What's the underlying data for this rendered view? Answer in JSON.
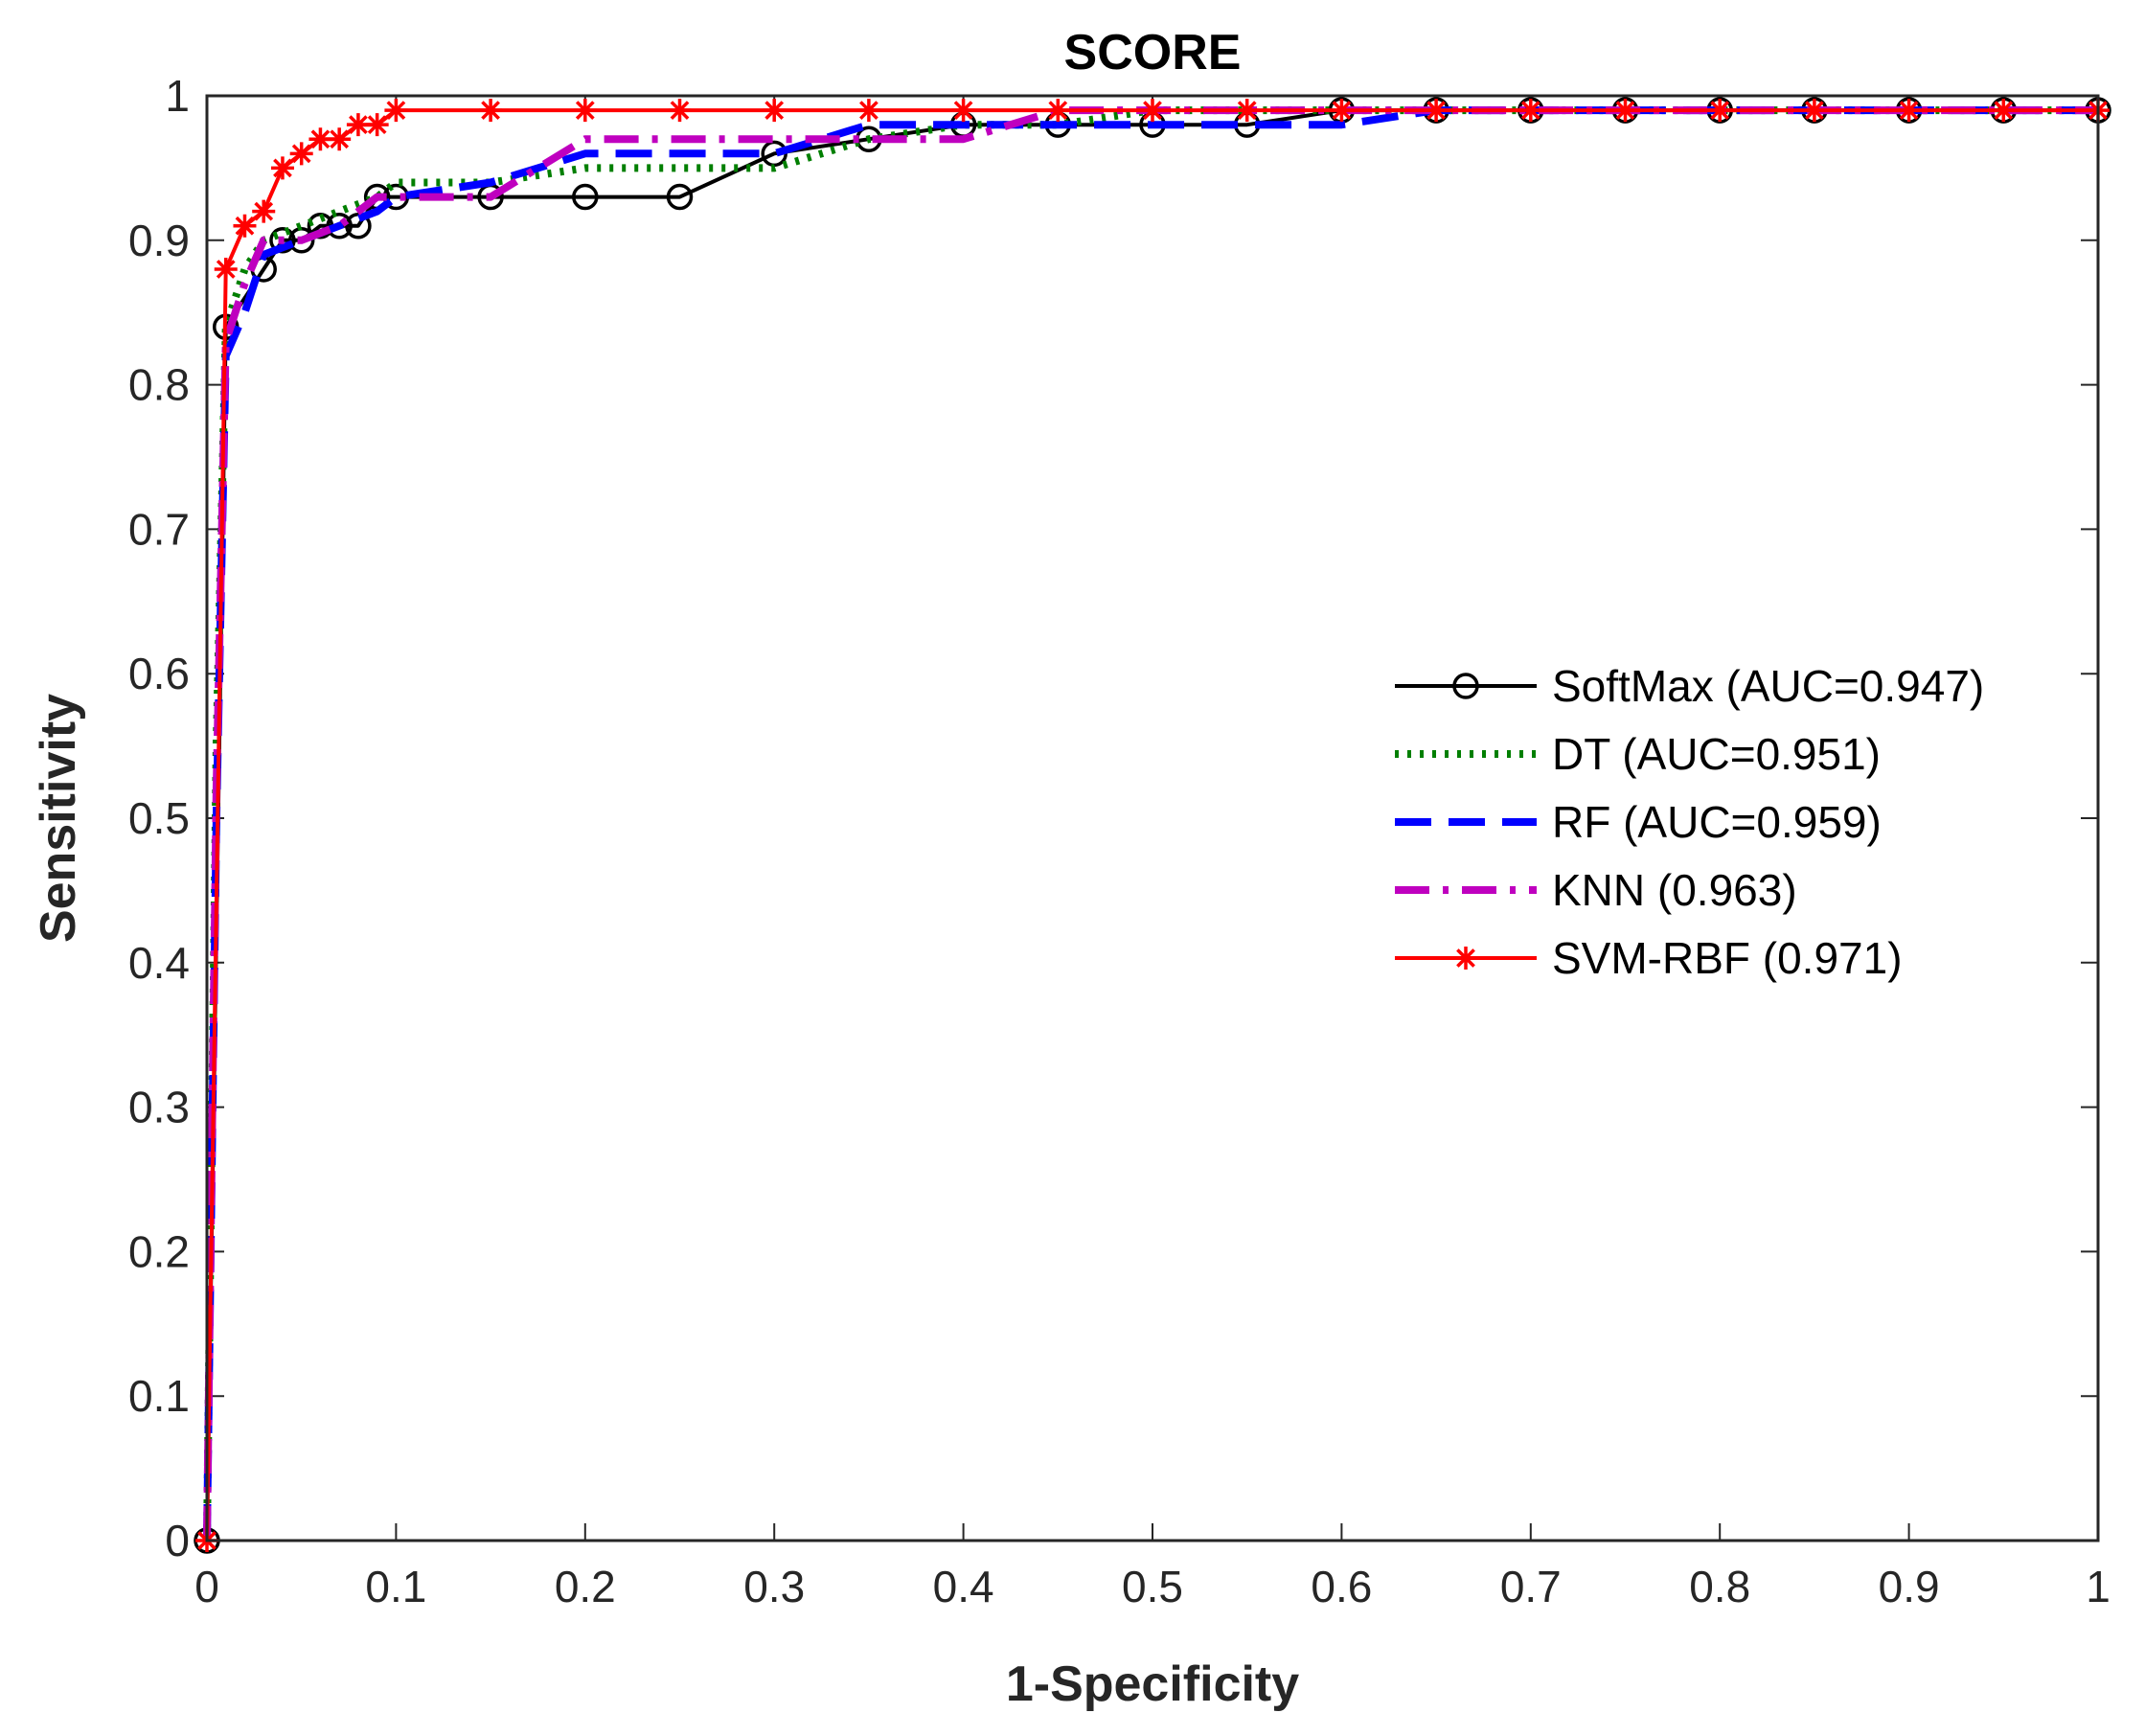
{
  "chart_data": {
    "type": "line",
    "title": "SCORE",
    "xlabel": "1-Specificity",
    "ylabel": "Sensitivity",
    "xlim": [
      0,
      1
    ],
    "ylim": [
      0,
      1
    ],
    "xticks": [
      "0",
      "0.1",
      "0.2",
      "0.3",
      "0.4",
      "0.5",
      "0.6",
      "0.7",
      "0.8",
      "0.9",
      "1"
    ],
    "yticks": [
      "0",
      "0.1",
      "0.2",
      "0.3",
      "0.4",
      "0.5",
      "0.6",
      "0.7",
      "0.8",
      "0.9",
      "1"
    ],
    "legend_position": "center-right",
    "series": [
      {
        "name": "SoftMax (AUC=0.947)",
        "color": "#000000",
        "style": "solid",
        "marker": "circle",
        "x": [
          0,
          0.01,
          0.03,
          0.04,
          0.05,
          0.06,
          0.07,
          0.08,
          0.09,
          0.1,
          0.15,
          0.2,
          0.25,
          0.3,
          0.35,
          0.4,
          0.45,
          0.5,
          0.55,
          0.6,
          0.65,
          0.7,
          0.75,
          0.8,
          0.85,
          0.9,
          0.95,
          1.0
        ],
        "y": [
          0,
          0.84,
          0.88,
          0.9,
          0.9,
          0.91,
          0.91,
          0.91,
          0.93,
          0.93,
          0.93,
          0.93,
          0.93,
          0.96,
          0.97,
          0.98,
          0.98,
          0.98,
          0.98,
          0.99,
          0.99,
          0.99,
          0.99,
          0.99,
          0.99,
          0.99,
          0.99,
          0.99
        ]
      },
      {
        "name": "DT (AUC=0.951)",
        "color": "#007f00",
        "style": "dotted",
        "marker": "none",
        "x": [
          0,
          0.005,
          0.01,
          0.02,
          0.03,
          0.05,
          0.07,
          0.09,
          0.1,
          0.15,
          0.2,
          0.25,
          0.3,
          0.35,
          0.4,
          0.45,
          0.5,
          0.55,
          0.6,
          0.65,
          1.0
        ],
        "y": [
          0,
          0.55,
          0.84,
          0.88,
          0.9,
          0.91,
          0.92,
          0.93,
          0.94,
          0.94,
          0.95,
          0.95,
          0.95,
          0.97,
          0.98,
          0.98,
          0.99,
          0.99,
          0.99,
          0.99,
          0.99
        ]
      },
      {
        "name": "RF (AUC=0.959)",
        "color": "#0000ff",
        "style": "dashed",
        "marker": "none",
        "x": [
          0,
          0.005,
          0.01,
          0.02,
          0.03,
          0.05,
          0.07,
          0.09,
          0.1,
          0.15,
          0.2,
          0.25,
          0.3,
          0.35,
          0.4,
          0.45,
          0.5,
          0.55,
          0.6,
          0.65,
          1.0
        ],
        "y": [
          0,
          0.5,
          0.82,
          0.85,
          0.89,
          0.9,
          0.91,
          0.92,
          0.93,
          0.94,
          0.96,
          0.96,
          0.96,
          0.98,
          0.98,
          0.98,
          0.98,
          0.98,
          0.98,
          0.99,
          0.99
        ]
      },
      {
        "name": "KNN (0.963)",
        "color": "#bf00bf",
        "style": "dashdot",
        "marker": "none",
        "x": [
          0,
          0.005,
          0.01,
          0.02,
          0.03,
          0.05,
          0.07,
          0.09,
          0.1,
          0.15,
          0.2,
          0.25,
          0.3,
          0.35,
          0.4,
          0.45,
          0.5,
          0.6,
          0.65,
          1.0
        ],
        "y": [
          0,
          0.52,
          0.83,
          0.87,
          0.9,
          0.9,
          0.91,
          0.93,
          0.93,
          0.93,
          0.97,
          0.97,
          0.97,
          0.97,
          0.97,
          0.99,
          0.99,
          0.99,
          0.99,
          0.99
        ]
      },
      {
        "name": "SVM-RBF (0.971)",
        "color": "#ff0000",
        "style": "solid",
        "marker": "star",
        "x": [
          0,
          0.01,
          0.02,
          0.03,
          0.04,
          0.05,
          0.06,
          0.07,
          0.08,
          0.09,
          0.1,
          0.15,
          0.2,
          0.25,
          0.3,
          0.35,
          0.4,
          0.45,
          0.5,
          0.55,
          0.6,
          0.65,
          0.7,
          0.75,
          0.8,
          0.85,
          0.9,
          0.95,
          1.0
        ],
        "y": [
          0,
          0.88,
          0.91,
          0.92,
          0.95,
          0.96,
          0.97,
          0.97,
          0.98,
          0.98,
          0.99,
          0.99,
          0.99,
          0.99,
          0.99,
          0.99,
          0.99,
          0.99,
          0.99,
          0.99,
          0.99,
          0.99,
          0.99,
          0.99,
          0.99,
          0.99,
          0.99,
          0.99,
          0.99
        ]
      }
    ]
  }
}
